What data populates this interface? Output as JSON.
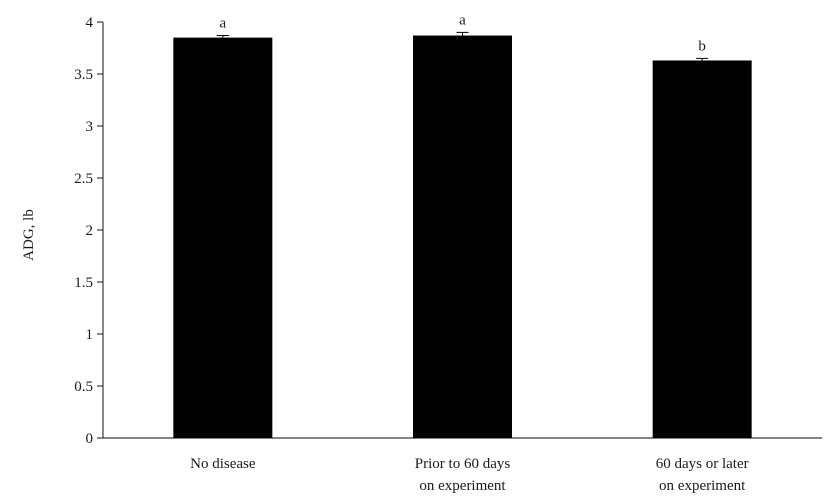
{
  "chart_data": {
    "type": "bar",
    "title": "",
    "xlabel": "",
    "ylabel": "ADG, lb",
    "ylim": [
      0,
      4
    ],
    "yticks": [
      "0",
      "0.5",
      "1",
      "1.5",
      "2",
      "2.5",
      "3",
      "3.5",
      "4"
    ],
    "grid": false,
    "legend": "none",
    "bar_color": "#000000",
    "categories": [
      [
        "No disease"
      ],
      [
        "Prior to 60 days",
        "on experiment"
      ],
      [
        "60 days or later",
        "on experiment"
      ]
    ],
    "values": [
      3.85,
      3.87,
      3.63
    ],
    "errors": [
      0.02,
      0.03,
      0.02
    ],
    "significance": [
      "a",
      "a",
      "b"
    ]
  }
}
